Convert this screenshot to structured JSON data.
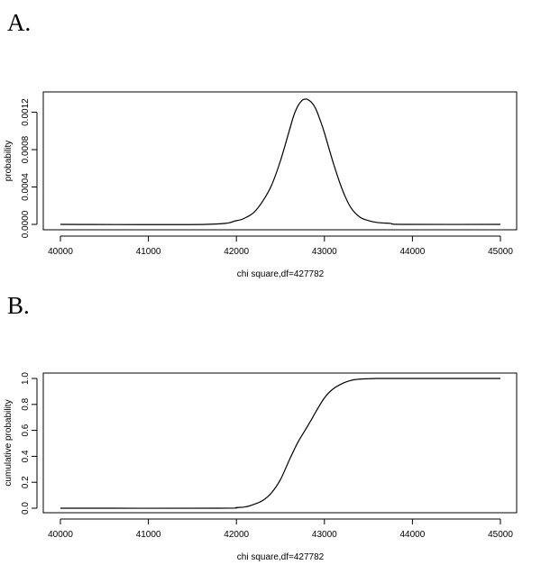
{
  "panels": [
    {
      "letter": "A."
    },
    {
      "letter": "B."
    }
  ],
  "chart_data": [
    {
      "type": "line",
      "panel": "A.",
      "title": "",
      "xlabel": "chi square,df=427782",
      "ylabel": "probability",
      "xlim": [
        40000,
        45000
      ],
      "ylim": [
        0,
        0.00136
      ],
      "x_ticks": [
        40000,
        41000,
        42000,
        43000,
        44000,
        45000
      ],
      "x_tick_labels": [
        "40000",
        "41000",
        "42000",
        "43000",
        "44000",
        "45000"
      ],
      "y_ticks": [
        0,
        0.0004,
        0.0008,
        0.0012
      ],
      "y_tick_labels": [
        "0.0000",
        "0.0004",
        "0.0008",
        "0.0012"
      ],
      "grid": false,
      "series": [
        {
          "x": [
            40000,
            41650,
            42000,
            42100,
            42200,
            42300,
            42400,
            42500,
            42600,
            42650,
            42700,
            42750,
            42780,
            42800,
            42850,
            42900,
            42950,
            43000,
            43100,
            43200,
            43300,
            43400,
            43500,
            43600,
            43750,
            43900,
            45000
          ],
          "values": [
            0,
            0,
            4e-05,
            7e-05,
            0.00013,
            0.00025,
            0.00042,
            0.00068,
            0.001,
            0.00116,
            0.00127,
            0.00133,
            0.00134,
            0.00134,
            0.00131,
            0.00124,
            0.00112,
            0.00098,
            0.00066,
            0.00038,
            0.00018,
            8e-05,
            4e-05,
            2e-05,
            1e-05,
            0,
            0
          ]
        }
      ]
    },
    {
      "type": "line",
      "panel": "B.",
      "title": "",
      "xlabel": "chi square,df=427782",
      "ylabel": "cumulative probability",
      "xlim": [
        40000,
        45000
      ],
      "ylim": [
        0,
        1
      ],
      "x_ticks": [
        40000,
        41000,
        42000,
        43000,
        44000,
        45000
      ],
      "x_tick_labels": [
        "40000",
        "41000",
        "42000",
        "43000",
        "44000",
        "45000"
      ],
      "y_ticks": [
        0,
        0.2,
        0.4,
        0.6,
        0.8,
        1.0
      ],
      "y_tick_labels": [
        "0.0",
        "0.2",
        "0.4",
        "0.6",
        "0.8",
        "1.0"
      ],
      "grid": false,
      "series": [
        {
          "x": [
            40000,
            41800,
            42000,
            42100,
            42200,
            42300,
            42400,
            42500,
            42600,
            42700,
            42780,
            42850,
            42900,
            43000,
            43100,
            43200,
            43300,
            43400,
            43500,
            43600,
            43750,
            45000
          ],
          "values": [
            0,
            0,
            0.005,
            0.01,
            0.03,
            0.06,
            0.12,
            0.22,
            0.37,
            0.51,
            0.6,
            0.68,
            0.74,
            0.85,
            0.92,
            0.96,
            0.985,
            0.995,
            0.998,
            1.0,
            1.0,
            1.0
          ]
        }
      ]
    }
  ]
}
